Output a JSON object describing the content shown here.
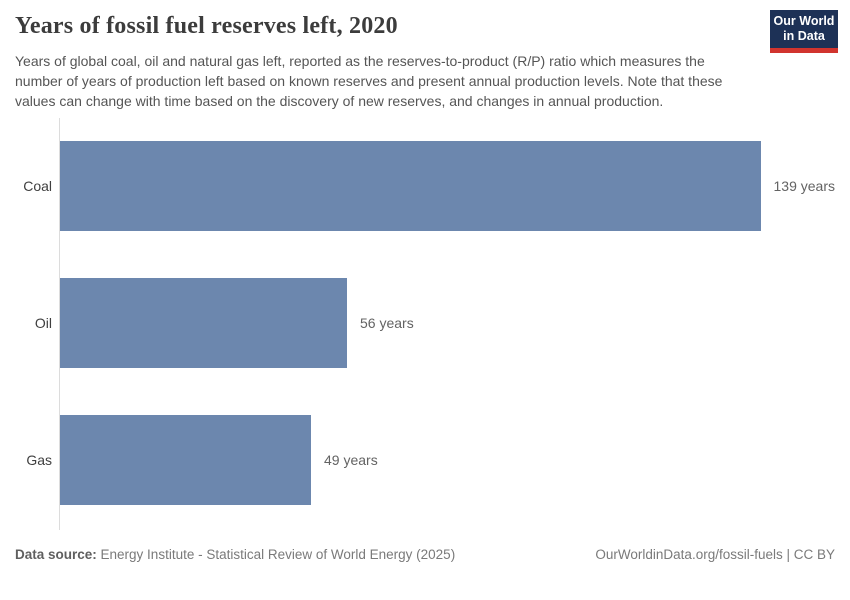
{
  "header": {
    "title": "Years of fossil fuel reserves left, 2020",
    "subtitle": "Years of global coal, oil and natural gas left, reported as the reserves-to-product (R/P) ratio which measures the number of years of production left based on known reserves and present annual production levels. Note that these values can change with time based on the discovery of new reserves, and changes in annual production."
  },
  "logo": {
    "line1": "Our World",
    "line2": "in Data",
    "bg_color": "#1d3156",
    "accent_color": "#d1342e"
  },
  "chart_data": {
    "type": "bar",
    "orientation": "horizontal",
    "title": "Years of fossil fuel reserves left, 2020",
    "categories": [
      "Coal",
      "Oil",
      "Gas"
    ],
    "values": [
      139,
      56,
      49
    ],
    "value_labels": [
      "139 years",
      "56 years",
      "49 years"
    ],
    "unit": "years",
    "xlim": [
      0,
      139
    ],
    "grid": false,
    "bar_color": "#6c87ae",
    "axis_color": "#dcdcdc"
  },
  "footer": {
    "source_prefix": "Data source:",
    "source_text": " Energy Institute - Statistical Review of World Energy (2025)",
    "attribution": "OurWorldinData.org/fossil-fuels | CC BY"
  }
}
